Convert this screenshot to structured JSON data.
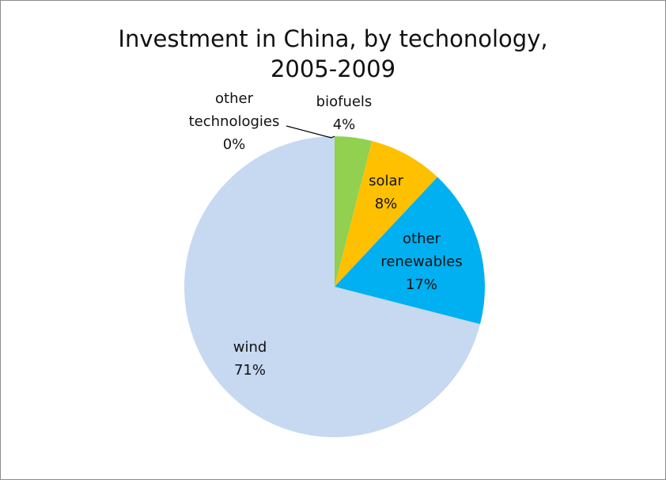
{
  "chart_data": {
    "type": "pie",
    "title_lines": [
      "Investment in China, by techonology,",
      "2005-2009"
    ],
    "slices": [
      {
        "label": "biofuels",
        "value": 4,
        "value_label": "4%",
        "color": "#92d050"
      },
      {
        "label": "solar",
        "value": 8,
        "value_label": "8%",
        "color": "#ffc000"
      },
      {
        "label": "other renewables",
        "label_lines": [
          "other",
          "renewables"
        ],
        "value": 17,
        "value_label": "17%",
        "color": "#00b0f0"
      },
      {
        "label": "wind",
        "value": 71,
        "value_label": "71%",
        "color": "#c6d9f1"
      },
      {
        "label": "other technologies",
        "label_lines": [
          "other",
          "technologies"
        ],
        "value": 0,
        "value_label": "0%",
        "color": "#7f7f7f"
      }
    ],
    "start_angle": "12 o'clock",
    "direction": "clockwise",
    "legend": "none"
  }
}
